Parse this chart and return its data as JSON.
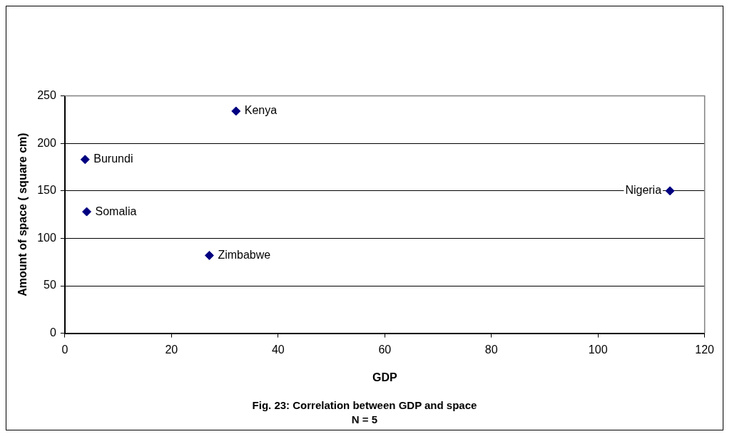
{
  "chart_data": {
    "type": "scatter",
    "title": "Fig. 23: Correlation between GDP and space",
    "subtitle": "N = 5",
    "xlabel": "GDP",
    "ylabel": "Amount of space ( square cm)",
    "xlim": [
      0,
      120
    ],
    "xticks": [
      0,
      20,
      40,
      60,
      80,
      100,
      120
    ],
    "ylim": [
      0,
      250
    ],
    "yticks": [
      0,
      50,
      100,
      150,
      200,
      250
    ],
    "grid": "y",
    "legend": false,
    "marker": "diamond",
    "series": [
      {
        "name": "Burundi",
        "color": "#000080",
        "x": [
          3.8
        ],
        "values": [
          183
        ]
      },
      {
        "name": "Somalia",
        "color": "#000080",
        "x": [
          4.1
        ],
        "values": [
          128
        ]
      },
      {
        "name": "Zimbabwe",
        "color": "#000080",
        "x": [
          27.1
        ],
        "values": [
          82
        ]
      },
      {
        "name": "Kenya",
        "color": "#000080",
        "x": [
          32.1
        ],
        "values": [
          234
        ]
      },
      {
        "name": "Nigeria",
        "color": "#000080",
        "x": [
          113.5
        ],
        "values": [
          150
        ]
      }
    ]
  }
}
